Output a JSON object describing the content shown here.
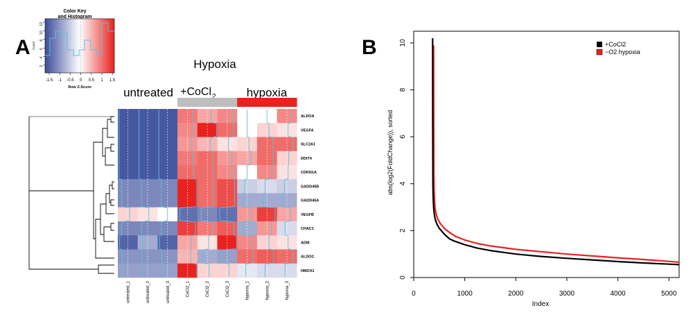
{
  "panel_a": {
    "letter": "A"
  },
  "panel_b": {
    "letter": "B"
  },
  "chart_data": [
    {
      "type": "heatmap",
      "title": "Hypoxia",
      "group_labels": [
        "untreated",
        "+CoCl",
        "2",
        "hypoxia"
      ],
      "group_bar_colors": [
        "#ffffff",
        "#bdbdbd",
        "#e8221e"
      ],
      "columns": [
        "untreated_1",
        "untreated_2",
        "untreated_3",
        "CoCl2_1",
        "CoCl2_2",
        "CoCl2_3",
        "hypoxia_1",
        "hypoxia_2",
        "hypoxia_3"
      ],
      "rows": [
        "ALDOA",
        "VEGFA",
        "SLC2A1",
        "DDIT4",
        "CDKN1A",
        "GADD45B",
        "GADD45A",
        "VEGFB",
        "CHAC1",
        "ADM",
        "ALDOC",
        "HMOX1"
      ],
      "values": [
        [
          -1.4,
          -1.4,
          -1.4,
          0.9,
          0.6,
          0.8,
          0.0,
          0.0,
          0.8
        ],
        [
          -1.4,
          -1.4,
          -1.4,
          0.8,
          1.5,
          1.0,
          0.0,
          0.3,
          0.2
        ],
        [
          -1.4,
          -1.4,
          -1.4,
          0.7,
          0.5,
          0.2,
          0.3,
          1.0,
          1.0
        ],
        [
          -1.4,
          -1.4,
          -1.4,
          0.9,
          1.0,
          0.7,
          0.6,
          1.0,
          0.3
        ],
        [
          -1.4,
          -1.4,
          -1.4,
          1.0,
          1.0,
          0.8,
          0.0,
          0.8,
          0.2
        ],
        [
          -1.0,
          -1.0,
          -1.0,
          1.5,
          1.0,
          1.2,
          -0.4,
          -0.3,
          -0.4
        ],
        [
          -1.0,
          -1.0,
          -1.0,
          1.5,
          1.0,
          1.2,
          -0.7,
          -0.7,
          -0.7
        ],
        [
          0.3,
          0.2,
          0.0,
          -1.2,
          -1.0,
          -1.2,
          0.7,
          1.3,
          0.6
        ],
        [
          -1.0,
          -1.0,
          -1.0,
          1.3,
          0.9,
          1.1,
          -0.7,
          0.7,
          -0.3
        ],
        [
          -1.3,
          -0.7,
          -1.3,
          0.6,
          0.2,
          1.5,
          0.8,
          0.3,
          0.2
        ],
        [
          -0.9,
          -0.9,
          -0.9,
          0.5,
          -0.7,
          -0.8,
          1.0,
          1.1,
          1.0
        ],
        [
          -0.8,
          -0.8,
          -0.8,
          1.5,
          0.3,
          0.3,
          -0.2,
          -0.3,
          -0.3
        ]
      ],
      "color_key": {
        "title": "Color Key",
        "subtitle": "and Histogram",
        "xlabel": "Row Z-Score",
        "ylabel": "Count",
        "xticks": [
          "-1.5",
          "-1",
          "-0.5",
          "0",
          "0.5",
          "1",
          "1.5"
        ],
        "yticks": [
          "2",
          "4",
          "6",
          "8",
          "10",
          "12"
        ],
        "colors": {
          "low": "#3a4c9b",
          "mid": "#ffffff",
          "high": "#e8221e"
        }
      }
    },
    {
      "type": "line",
      "xlabel": "Index",
      "ylabel": "abs(log2(FoldChange)), sorted",
      "xlim": [
        0,
        5200
      ],
      "ylim": [
        0,
        10.5
      ],
      "xticks": [
        "0",
        "1000",
        "2000",
        "3000",
        "4000",
        "5000"
      ],
      "yticks": [
        "0",
        "2",
        "4",
        "6",
        "8",
        "10"
      ],
      "legend_position": "top-right",
      "series": [
        {
          "name": "+CoCl2",
          "color": "#000000",
          "x": [
            370,
            372,
            376,
            380,
            390,
            400,
            420,
            450,
            500,
            600,
            700,
            800,
            1000,
            1250,
            1500,
            2000,
            2500,
            3000,
            3500,
            4000,
            4500,
            5000,
            5200
          ],
          "y": [
            10.2,
            6.8,
            4.0,
            3.5,
            3.0,
            2.75,
            2.5,
            2.3,
            2.1,
            1.85,
            1.65,
            1.55,
            1.4,
            1.25,
            1.15,
            1.0,
            0.9,
            0.82,
            0.75,
            0.68,
            0.62,
            0.57,
            0.55
          ]
        },
        {
          "name": "−O2 hypoxia",
          "color": "#e8221e",
          "x": [
            390,
            392,
            396,
            400,
            410,
            420,
            440,
            470,
            520,
            620,
            720,
            820,
            1000,
            1250,
            1500,
            2000,
            2500,
            3000,
            3500,
            4000,
            4500,
            5000,
            5200
          ],
          "y": [
            9.9,
            6.4,
            4.2,
            3.7,
            3.2,
            2.95,
            2.7,
            2.5,
            2.3,
            2.05,
            1.9,
            1.75,
            1.6,
            1.45,
            1.35,
            1.2,
            1.1,
            1.0,
            0.92,
            0.84,
            0.77,
            0.69,
            0.65
          ]
        }
      ]
    }
  ]
}
